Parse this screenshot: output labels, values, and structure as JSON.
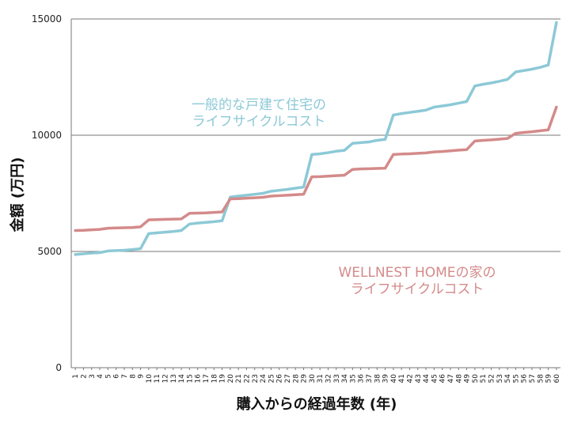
{
  "chart_data": {
    "type": "line",
    "xlabel": "購入からの経過年数 (年)",
    "ylabel": "金額 (万円)",
    "ylim": [
      0,
      15000
    ],
    "yticks": [
      0,
      5000,
      10000,
      15000
    ],
    "grid": "horizontal",
    "x": [
      1,
      2,
      3,
      4,
      5,
      6,
      7,
      8,
      9,
      10,
      11,
      12,
      13,
      14,
      15,
      16,
      17,
      18,
      19,
      20,
      21,
      22,
      23,
      24,
      25,
      26,
      27,
      28,
      29,
      30,
      31,
      32,
      33,
      34,
      35,
      36,
      37,
      38,
      39,
      40,
      41,
      42,
      43,
      44,
      45,
      46,
      47,
      48,
      49,
      50,
      51,
      52,
      53,
      54,
      55,
      56,
      57,
      58,
      59,
      60
    ],
    "series": [
      {
        "name": "一般的な戸建て住宅のライフサイクルコスト",
        "label_lines": [
          "一般的な戸建て住宅の",
          "ライフサイクルコスト"
        ],
        "color": "#8cc9d6",
        "values": [
          4870,
          4900,
          4930,
          4950,
          5020,
          5040,
          5050,
          5080,
          5120,
          5770,
          5800,
          5830,
          5860,
          5900,
          6180,
          6220,
          6250,
          6280,
          6320,
          7340,
          7380,
          7420,
          7460,
          7500,
          7590,
          7630,
          7670,
          7720,
          7770,
          9170,
          9200,
          9250,
          9310,
          9350,
          9650,
          9680,
          9710,
          9780,
          9820,
          10870,
          10930,
          10980,
          11030,
          11080,
          11210,
          11260,
          11310,
          11380,
          11450,
          12120,
          12190,
          12250,
          12320,
          12400,
          12720,
          12780,
          12840,
          12920,
          13020,
          14850
        ]
      },
      {
        "name": "WELLNEST HOMEの家のライフサイクルコスト",
        "label_lines": [
          "WELLNEST HOMEの家の",
          "ライフサイクルコスト"
        ],
        "color": "#d48a8a",
        "values": [
          5900,
          5910,
          5930,
          5950,
          6000,
          6010,
          6020,
          6030,
          6060,
          6360,
          6370,
          6380,
          6390,
          6400,
          6640,
          6650,
          6660,
          6680,
          6700,
          7260,
          7270,
          7290,
          7310,
          7330,
          7380,
          7400,
          7420,
          7440,
          7460,
          8210,
          8220,
          8240,
          8260,
          8280,
          8530,
          8550,
          8560,
          8570,
          8580,
          9170,
          9190,
          9200,
          9220,
          9240,
          9280,
          9300,
          9330,
          9360,
          9380,
          9750,
          9780,
          9800,
          9830,
          9860,
          10080,
          10120,
          10150,
          10190,
          10230,
          11210
        ]
      }
    ]
  }
}
